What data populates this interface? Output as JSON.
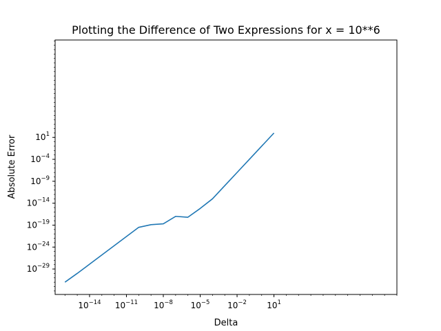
{
  "chart_data": {
    "type": "line",
    "title": "Plotting the Difference of Two Expressions for x = 10**6",
    "xlabel": "Delta",
    "ylabel": "Absolute Error",
    "xscale": "log",
    "yscale": "log",
    "xlim_log10": [
      -16.8,
      11
    ],
    "ylim_log10": [
      -34.8,
      23.2
    ],
    "x_ticks": [
      {
        "base": "10",
        "exp": "−14",
        "log10": -14
      },
      {
        "base": "10",
        "exp": "−11",
        "log10": -11
      },
      {
        "base": "10",
        "exp": "−8",
        "log10": -8
      },
      {
        "base": "10",
        "exp": "−5",
        "log10": -5
      },
      {
        "base": "10",
        "exp": "−2",
        "log10": -2
      },
      {
        "base": "10",
        "exp": "1",
        "log10": 1
      }
    ],
    "y_ticks": [
      {
        "base": "10",
        "exp": "1",
        "log10": 1
      },
      {
        "base": "10",
        "exp": "−4",
        "log10": -4
      },
      {
        "base": "10",
        "exp": "−9",
        "log10": -9
      },
      {
        "base": "10",
        "exp": "−14",
        "log10": -14
      },
      {
        "base": "10",
        "exp": "−19",
        "log10": -19
      },
      {
        "base": "10",
        "exp": "−24",
        "log10": -24
      },
      {
        "base": "10",
        "exp": "−29",
        "log10": -29
      }
    ],
    "grid": false,
    "series": [
      {
        "color": "#1f77b4",
        "points_log10": [
          [
            -16,
            -32.0
          ],
          [
            -15,
            -30.0
          ],
          [
            -14,
            -27.9
          ],
          [
            -13,
            -25.8
          ],
          [
            -12,
            -23.7
          ],
          [
            -11,
            -21.6
          ],
          [
            -10,
            -19.5
          ],
          [
            -9,
            -18.9
          ],
          [
            -8,
            -18.7
          ],
          [
            -7,
            -17.0
          ],
          [
            -6,
            -17.2
          ],
          [
            -5,
            -15.2
          ],
          [
            -4,
            -13.0
          ],
          [
            -3,
            -10.0
          ],
          [
            -2,
            -7.0
          ],
          [
            -1,
            -4.0
          ],
          [
            0,
            -1.0
          ],
          [
            1,
            2.0
          ]
        ]
      }
    ]
  }
}
